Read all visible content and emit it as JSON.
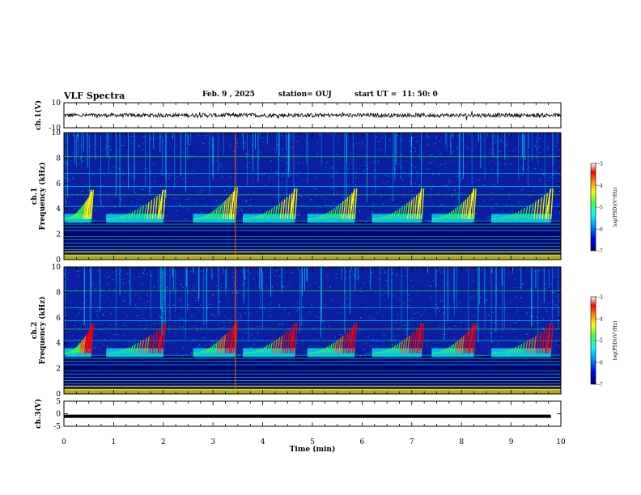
{
  "header": {
    "title": "VLF Spectra",
    "date": "Feb. 9 , 2025",
    "station": "station= OUJ",
    "start": "start UT =  11: 50: 0"
  },
  "colors": {
    "spec_bg": "#0a1ea0",
    "colormap": [
      "#00007a",
      "#0000ff",
      "#00a0ff",
      "#00ffff",
      "#40ff40",
      "#ffff00",
      "#ff8000",
      "#ff0000",
      "#ffffff"
    ]
  },
  "chart_data": [
    {
      "type": "line",
      "panel": "ch1-waveform",
      "ylabel": "ch.1(V)",
      "ylim": [
        -10,
        10
      ],
      "yticks": [
        "10",
        "-10"
      ],
      "x": [
        0,
        10
      ],
      "values": [
        0,
        0
      ],
      "xlim": [
        0,
        10
      ]
    },
    {
      "type": "heatmap",
      "panel": "ch1-spectrogram",
      "ylabel": "ch.1\nFrequency (kHz)",
      "ylim": [
        0,
        10
      ],
      "yticks": [
        "0",
        "2",
        "4",
        "6",
        "8",
        "10"
      ],
      "xlim": [
        0,
        10
      ],
      "colorbar": {
        "label": "log(PSD)(V²/Hz)",
        "range": [
          -7,
          -3
        ],
        "ticks": [
          "-3",
          "-4",
          "-5",
          "-6",
          "-7"
        ]
      },
      "emission_bursts_min": [
        {
          "start": 0.0,
          "end": 0.55,
          "fmin": 3.2,
          "fmax": 5.5
        },
        {
          "start": 0.85,
          "end": 2.0,
          "fmin": 3.2,
          "fmax": 5.5
        },
        {
          "start": 2.6,
          "end": 3.45,
          "fmin": 3.2,
          "fmax": 5.7
        },
        {
          "start": 3.6,
          "end": 4.65,
          "fmin": 3.2,
          "fmax": 5.6
        },
        {
          "start": 4.9,
          "end": 5.85,
          "fmin": 3.2,
          "fmax": 5.6
        },
        {
          "start": 6.2,
          "end": 7.2,
          "fmin": 3.2,
          "fmax": 5.6
        },
        {
          "start": 7.4,
          "end": 8.25,
          "fmin": 3.2,
          "fmax": 5.6
        },
        {
          "start": 8.6,
          "end": 9.8,
          "fmin": 3.2,
          "fmax": 5.6
        }
      ]
    },
    {
      "type": "heatmap",
      "panel": "ch2-spectrogram",
      "ylabel": "ch.2\nFrequency (kHz)",
      "ylim": [
        0,
        10
      ],
      "yticks": [
        "0",
        "2",
        "4",
        "6",
        "8",
        "10"
      ],
      "xlim": [
        0,
        10
      ],
      "colorbar": {
        "label": "log(PSD)(V²/Hz)",
        "range": [
          -7,
          -3
        ],
        "ticks": [
          "-3",
          "-4",
          "-5",
          "-6",
          "-7"
        ]
      },
      "emission_bursts_min": [
        {
          "start": 0.0,
          "end": 0.55,
          "fmin": 3.2,
          "fmax": 5.5
        },
        {
          "start": 0.85,
          "end": 2.0,
          "fmin": 3.2,
          "fmax": 5.5
        },
        {
          "start": 2.6,
          "end": 3.45,
          "fmin": 3.2,
          "fmax": 5.7
        },
        {
          "start": 3.6,
          "end": 4.65,
          "fmin": 3.2,
          "fmax": 5.6
        },
        {
          "start": 4.9,
          "end": 5.85,
          "fmin": 3.2,
          "fmax": 5.6
        },
        {
          "start": 6.2,
          "end": 7.2,
          "fmin": 3.2,
          "fmax": 5.6
        },
        {
          "start": 7.4,
          "end": 8.25,
          "fmin": 3.2,
          "fmax": 5.6
        },
        {
          "start": 8.6,
          "end": 9.8,
          "fmin": 3.2,
          "fmax": 5.6
        }
      ]
    },
    {
      "type": "line",
      "panel": "ch3-waveform",
      "ylabel": "ch.3(V)",
      "ylim": [
        -5,
        5
      ],
      "yticks": [
        "5",
        "0",
        "-5"
      ],
      "x": [
        0,
        9.8
      ],
      "values": [
        -1,
        -1
      ],
      "xlim": [
        0,
        10
      ],
      "xlabel": "Time (min)",
      "xticks": [
        "0",
        "1",
        "2",
        "3",
        "4",
        "5",
        "6",
        "7",
        "8",
        "9",
        "10"
      ]
    }
  ]
}
